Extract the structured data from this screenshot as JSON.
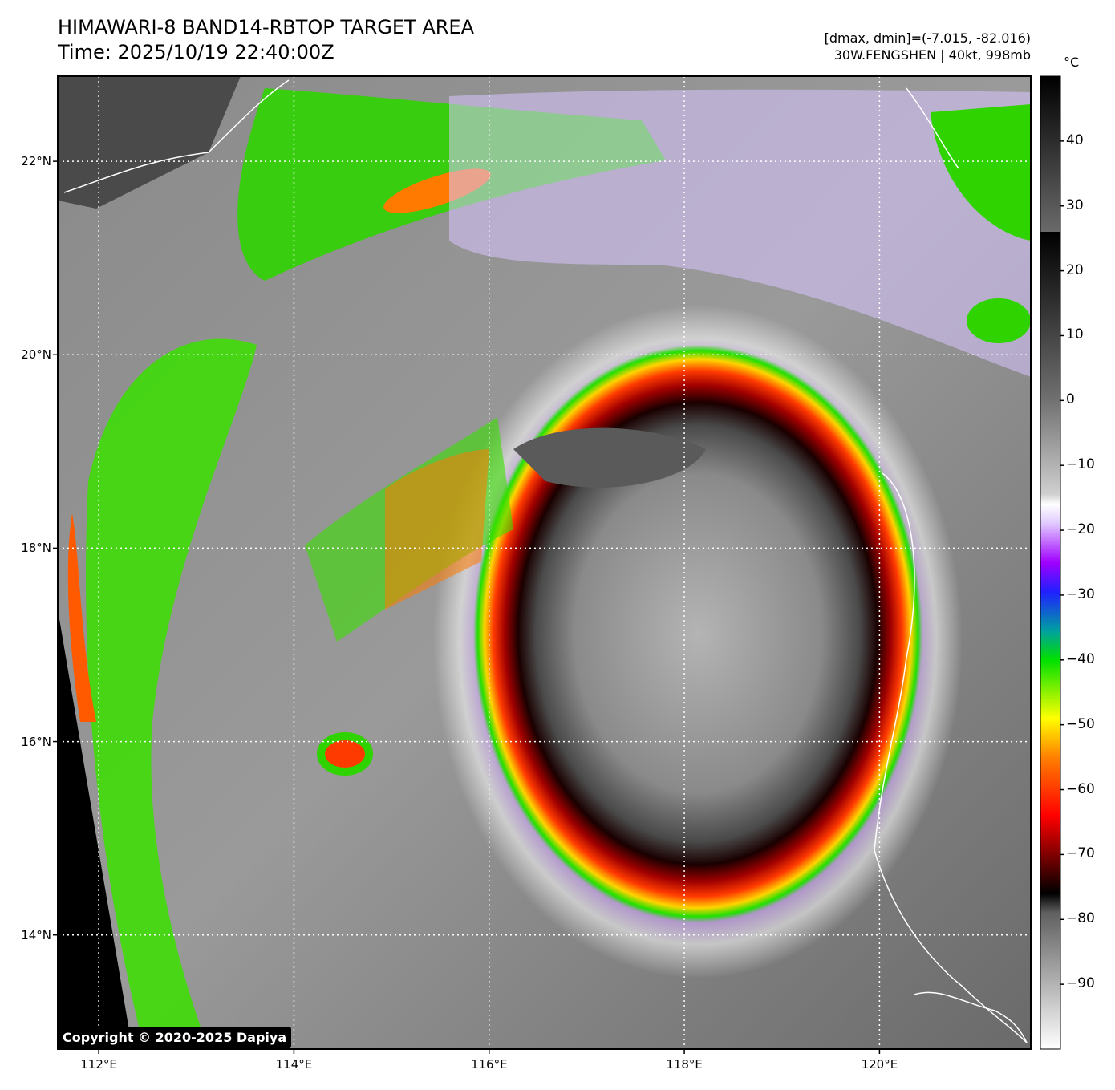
{
  "header": {
    "title_line1": "HIMAWARI-8 BAND14-RBTOP TARGET AREA",
    "title_line2": "Time: 2025/10/19 22:40:00Z",
    "info_line1": "[dmax, dmin]=(-7.015, -82.016)",
    "info_line2": "30W.FENGSHEN | 40kt, 998mb"
  },
  "map": {
    "latitude_labels": [
      {
        "label": "22°N",
        "value": 22
      },
      {
        "label": "20°N",
        "value": 20
      },
      {
        "label": "18°N",
        "value": 18
      },
      {
        "label": "16°N",
        "value": 16
      },
      {
        "label": "14°N",
        "value": 14
      }
    ],
    "longitude_labels": [
      {
        "label": "112°E",
        "value": 112
      },
      {
        "label": "114°E",
        "value": 114
      },
      {
        "label": "116°E",
        "value": 116
      },
      {
        "label": "118°E",
        "value": 118
      },
      {
        "label": "120°E",
        "value": 120
      }
    ],
    "lon_range": [
      111.58,
      121.55
    ],
    "lat_range": [
      12.82,
      22.88
    ],
    "storm_center": {
      "lat": 16.7,
      "lon": 118.1
    }
  },
  "colorbar": {
    "unit": "°C",
    "range": [
      -100,
      50
    ],
    "ticks": [
      {
        "label": "40",
        "value": 40
      },
      {
        "label": "30",
        "value": 30
      },
      {
        "label": "20",
        "value": 20
      },
      {
        "label": "10",
        "value": 10
      },
      {
        "label": "0",
        "value": 0
      },
      {
        "label": "−10",
        "value": -10
      },
      {
        "label": "−20",
        "value": -20
      },
      {
        "label": "−30",
        "value": -30
      },
      {
        "label": "−40",
        "value": -40
      },
      {
        "label": "−50",
        "value": -50
      },
      {
        "label": "−60",
        "value": -60
      },
      {
        "label": "−70",
        "value": -70
      },
      {
        "label": "−80",
        "value": -80
      },
      {
        "label": "−90",
        "value": -90
      }
    ]
  },
  "footer": {
    "copyright": "Copyright © 2020-2025 Dapiya"
  }
}
